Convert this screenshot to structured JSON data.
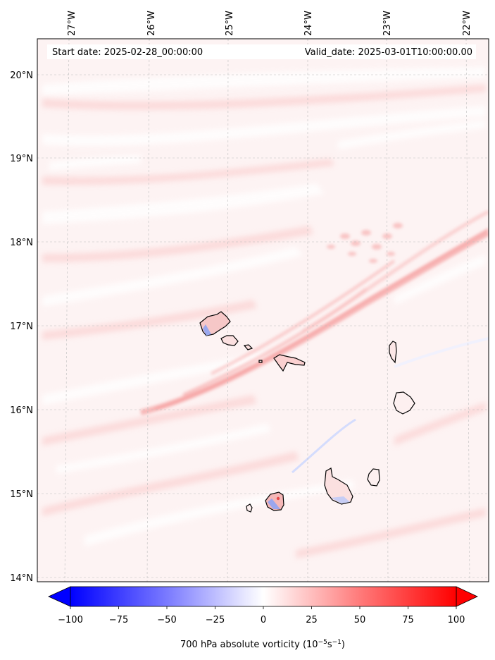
{
  "header": {
    "start_date": "Start date: 2025-02-28_00:00:00",
    "valid_date": "Valid_date: 2025-03-01T10:00:00.00"
  },
  "map": {
    "lon_labels": [
      "27°W",
      "26°W",
      "25°W",
      "24°W",
      "23°W",
      "22°W"
    ],
    "lat_labels": [
      "20°N",
      "19°N",
      "18°N",
      "17°N",
      "16°N",
      "15°N",
      "14°N"
    ],
    "gridlines": true
  },
  "colorbar": {
    "min": -100,
    "max": 100,
    "ticks": [
      "−100",
      "−75",
      "−50",
      "−25",
      "0",
      "25",
      "50",
      "75",
      "100"
    ],
    "label_main": "700 hPa absolute vorticity (10",
    "label_exp1": "−5",
    "label_mid": "s",
    "label_exp2": "−1",
    "label_end": ")",
    "colors": {
      "negative": "#0000ff",
      "zero": "#ffffff",
      "positive": "#ff0000"
    }
  }
}
